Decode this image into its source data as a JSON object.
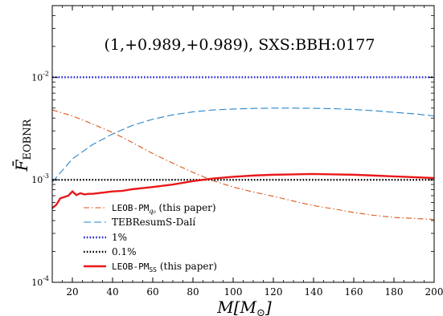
{
  "chart_data": {
    "type": "line",
    "title": "(1,+0.989,+0.989), SXS:BBH:0177",
    "xlabel": "M[M",
    "xlabel_sub": "⊙",
    "xlabel_close": "]",
    "ylabel": "F̄",
    "ylabel_sub": "EOBNR",
    "xlim": [
      10,
      200
    ],
    "ylim": [
      0.0001,
      0.05
    ],
    "yscale": "log",
    "x_ticks": [
      20,
      40,
      60,
      80,
      100,
      120,
      140,
      160,
      180,
      200
    ],
    "x_tick_labels": [
      "20",
      "40",
      "60",
      "80",
      "100",
      "120",
      "140",
      "160",
      "180",
      "200"
    ],
    "y_ticks": [
      0.0001,
      0.001,
      0.01
    ],
    "y_tick_base": "10",
    "y_tick_exps": [
      "-4",
      "-3",
      "-2"
    ],
    "grid": false,
    "legend_position": "lower-left",
    "series": [
      {
        "name_mono": "LEOB-PM",
        "name_sub": "q₀",
        "name_suffix": " (this paper)",
        "color": "#d9571b",
        "style": "dashdot",
        "x": [
          10,
          20,
          30,
          40,
          50,
          60,
          70,
          80,
          90,
          100,
          110,
          120,
          130,
          140,
          150,
          160,
          170,
          180,
          190,
          200
        ],
        "y": [
          0.0048,
          0.0042,
          0.0035,
          0.0029,
          0.0023,
          0.0018,
          0.00145,
          0.00118,
          0.00098,
          0.00085,
          0.00076,
          0.00069,
          0.00062,
          0.00056,
          0.00052,
          0.00048,
          0.00045,
          0.00043,
          0.00042,
          0.00041
        ]
      },
      {
        "name": "TEBResumS-Dalí",
        "color": "#2a86c8",
        "style": "dashed",
        "x": [
          10,
          20,
          30,
          40,
          50,
          60,
          70,
          80,
          90,
          100,
          110,
          120,
          130,
          140,
          150,
          160,
          170,
          180,
          190,
          200
        ],
        "y": [
          0.00095,
          0.0016,
          0.0022,
          0.0028,
          0.0034,
          0.0039,
          0.0043,
          0.0046,
          0.0048,
          0.0049,
          0.00497,
          0.005,
          0.005,
          0.00498,
          0.00494,
          0.00485,
          0.00472,
          0.00455,
          0.0044,
          0.0042
        ]
      },
      {
        "name": "1%",
        "color": "#1f1fd6",
        "style": "dotted",
        "x": [
          10,
          200
        ],
        "y": [
          0.01,
          0.01
        ]
      },
      {
        "name": "0.1%",
        "color": "#000000",
        "style": "dotted",
        "x": [
          10,
          200
        ],
        "y": [
          0.001,
          0.001
        ]
      },
      {
        "name_mono": "LEOB-PM",
        "name_sub": "SS",
        "name_suffix": " (this paper)",
        "color": "#e8191b",
        "style": "solid",
        "x": [
          10,
          12,
          14,
          16,
          18,
          20,
          22,
          24,
          26,
          28,
          30,
          35,
          40,
          45,
          50,
          60,
          70,
          80,
          90,
          100,
          110,
          120,
          130,
          140,
          150,
          160,
          170,
          180,
          190,
          200
        ],
        "y": [
          0.00053,
          0.00057,
          0.00066,
          0.00068,
          0.0007,
          0.00077,
          0.00071,
          0.00074,
          0.00072,
          0.00073,
          0.00073,
          0.00075,
          0.00077,
          0.00078,
          0.00081,
          0.00085,
          0.0009,
          0.00097,
          0.00103,
          0.00107,
          0.0011,
          0.00112,
          0.00113,
          0.00114,
          0.00113,
          0.00112,
          0.0011,
          0.00108,
          0.00106,
          0.00104
        ]
      }
    ]
  }
}
